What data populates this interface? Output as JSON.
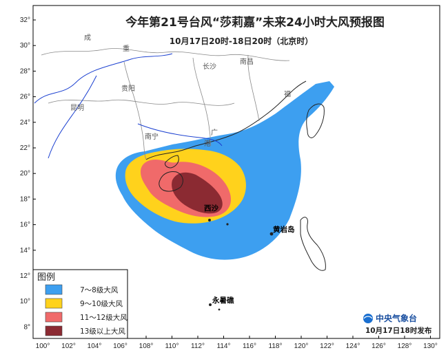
{
  "map": {
    "title": "今年第21号台风“莎莉嘉”未来24小时大风预报图",
    "subtitle": "10月17日20时-18日20时（北京时）",
    "lon_ticks": [
      "100°",
      "102°",
      "104°",
      "106°",
      "108°",
      "110°",
      "112°",
      "114°",
      "116°",
      "118°",
      "120°",
      "122°",
      "124°",
      "126°",
      "128°",
      "130°"
    ],
    "lat_ticks": [
      "32°",
      "30°",
      "28°",
      "26°",
      "24°",
      "22°",
      "20°",
      "18°",
      "16°",
      "14°",
      "12°",
      "10°",
      "8°"
    ],
    "cities": [
      "成",
      "重",
      "贵阳",
      "昆明",
      "南宁",
      "长沙",
      "南昌",
      "福",
      "广",
      "港"
    ],
    "places": [
      "西沙",
      "黄岩岛",
      "永暑礁"
    ],
    "zone_colors": {
      "level_7_8": "#3d9ff0",
      "level_9_10": "#ffd21c",
      "level_11_12": "#f06a6a",
      "level_13_plus": "#8b2a32"
    }
  },
  "legend": {
    "title": "图例",
    "items": [
      {
        "label": "7～8级大风",
        "color": "#3d9ff0"
      },
      {
        "label": "9～10级大风",
        "color": "#ffd21c"
      },
      {
        "label": "11～12级大风",
        "color": "#f06a6a"
      },
      {
        "label": "13级以上大风",
        "color": "#8b2a32"
      }
    ]
  },
  "footer": {
    "agency": "中央气象台",
    "issued": "10月17日18时发布"
  }
}
